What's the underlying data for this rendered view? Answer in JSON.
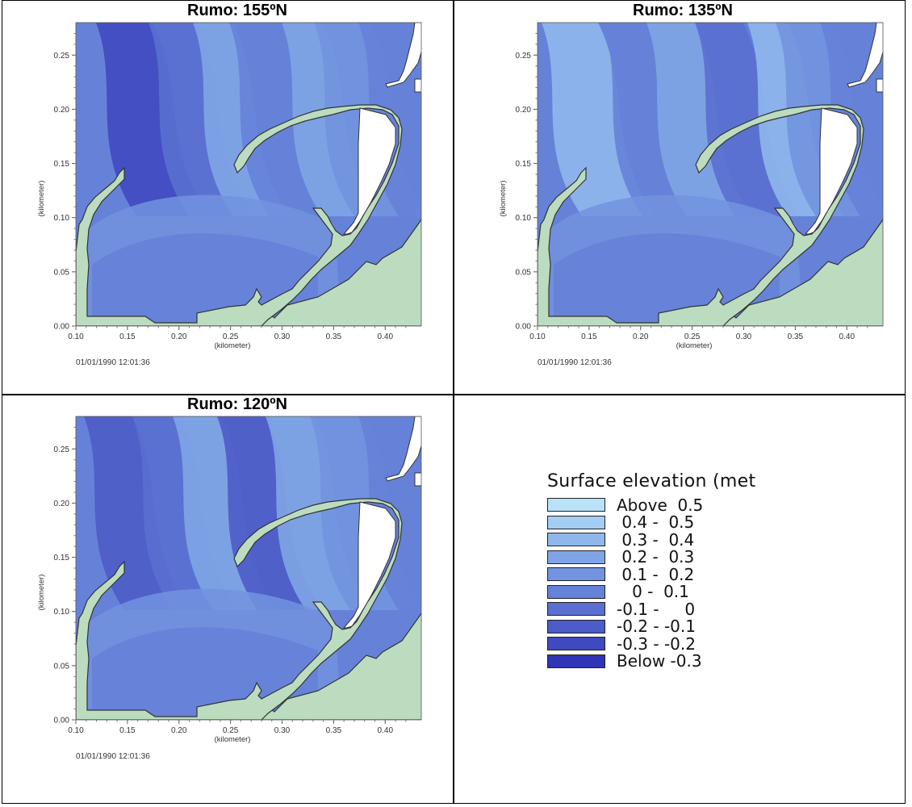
{
  "panels": [
    {
      "title": "Rumo: 155ºN",
      "timestamp": "01/01/1990 12:01:36",
      "ylabel": "(kilometer)",
      "xlabel": "(kilometer)"
    },
    {
      "title": "Rumo: 135ºN",
      "timestamp": "01/01/1990 12:01:36",
      "ylabel": "(kilometer)",
      "xlabel": "(kilometer)"
    },
    {
      "title": "Rumo: 120ºN",
      "timestamp": "01/01/1990 12:01:36",
      "ylabel": "(kilometer)",
      "xlabel": "(kilometer)"
    }
  ],
  "legend": {
    "title": "Surface elevation (met",
    "items": [
      {
        "label": "Above  0.5",
        "color": "#b9e1f7"
      },
      {
        "label": " 0.4 -  0.5",
        "color": "#a3cdf3"
      },
      {
        "label": " 0.3 -  0.4",
        "color": "#8fb7ec"
      },
      {
        "label": " 0.2 -  0.3",
        "color": "#7fa5e6"
      },
      {
        "label": " 0.1 -  0.2",
        "color": "#7293df"
      },
      {
        "label": "   0 -  0.1",
        "color": "#6582d8"
      },
      {
        "label": "-0.1 -     0",
        "color": "#5a6fd0"
      },
      {
        "label": "-0.2 - -0.1",
        "color": "#4c5cc8"
      },
      {
        "label": "-0.3 - -0.2",
        "color": "#3f49c0"
      },
      {
        "label": "Below -0.3",
        "color": "#2f35b4"
      }
    ]
  },
  "chart_data": {
    "type": "heatmap",
    "x_ticks": [
      "0.10",
      "0.15",
      "0.20",
      "0.25",
      "0.30",
      "0.35",
      "0.40"
    ],
    "y_ticks": [
      "0.00",
      "0.05",
      "0.10",
      "0.15",
      "0.20",
      "0.25"
    ],
    "xlim": [
      0.1,
      0.435
    ],
    "ylim": [
      0.0,
      0.28
    ],
    "land_color": "#bcdcbf",
    "dry_color": "#ffffff"
  }
}
